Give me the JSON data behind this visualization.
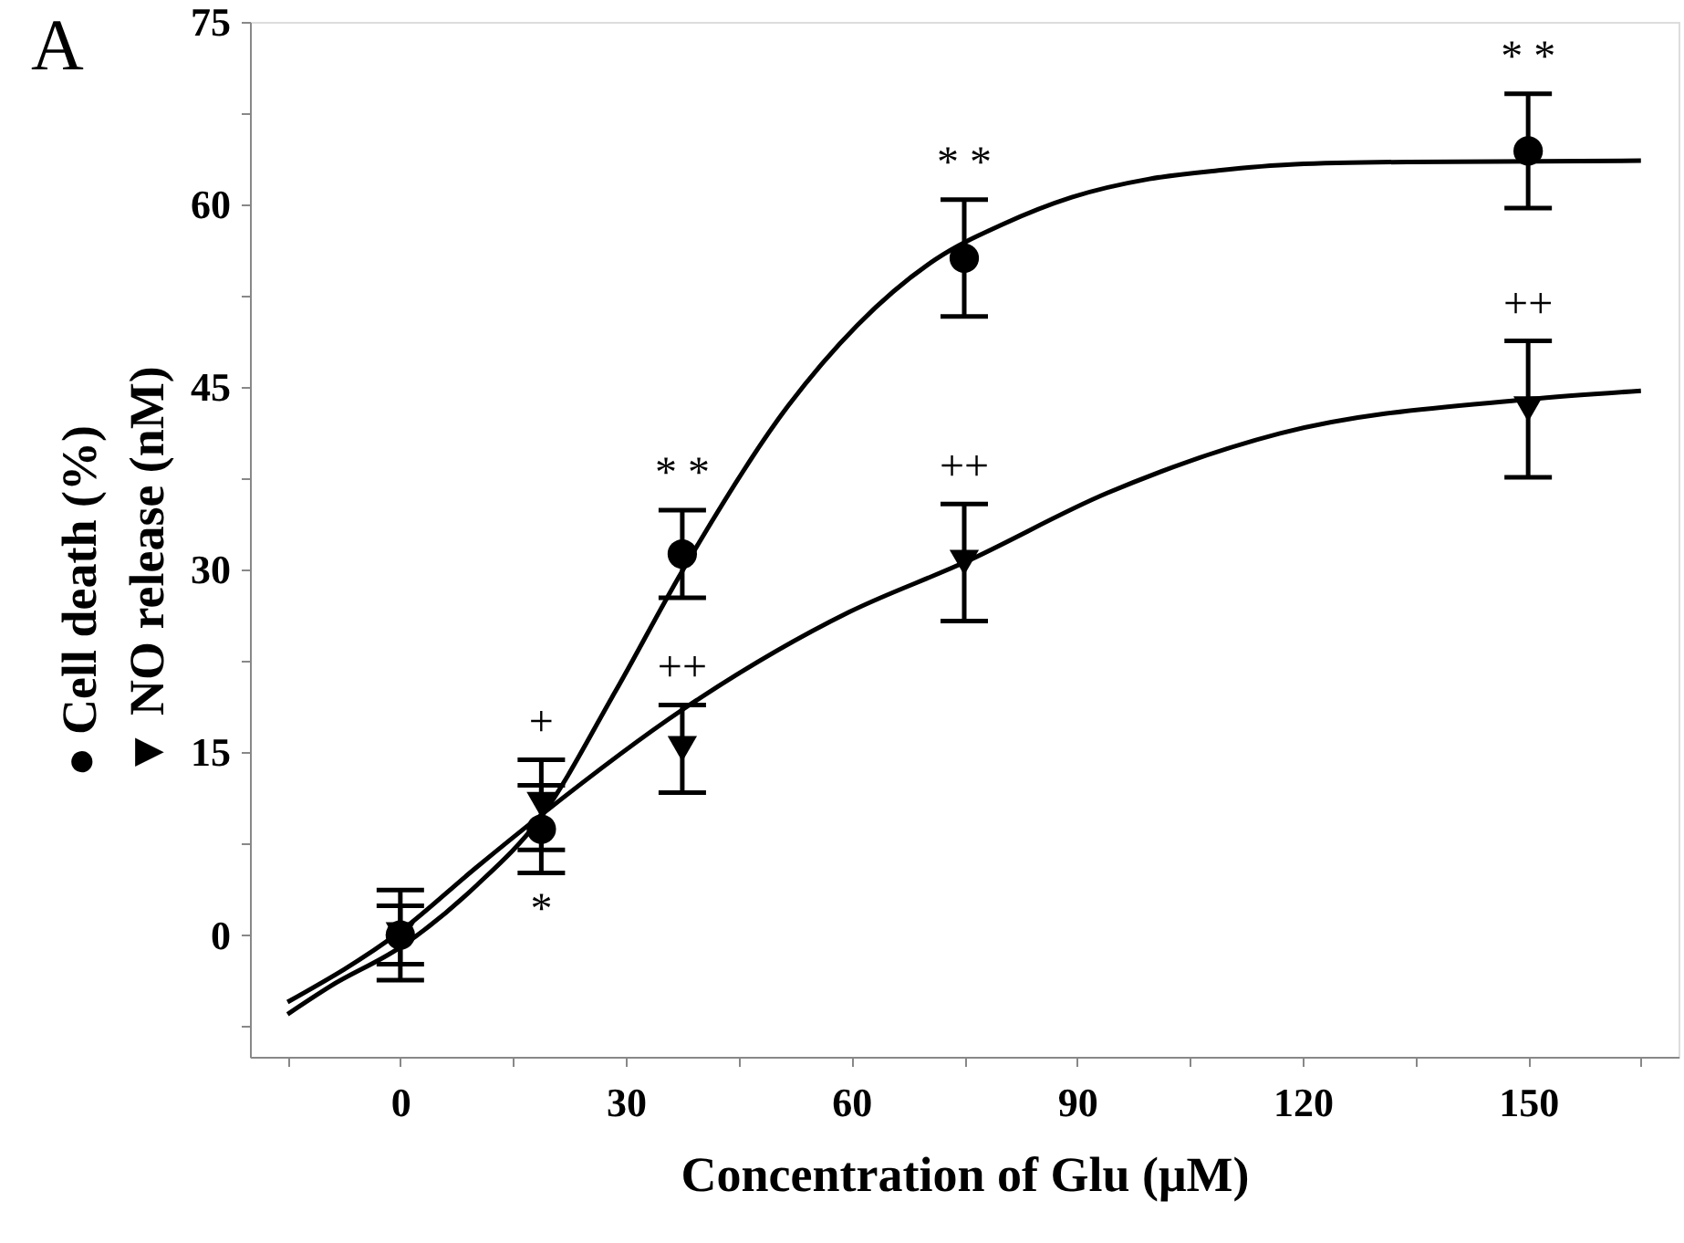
{
  "chart_data": {
    "type": "scatter",
    "xlabel": "Concentration of Glu (μM)",
    "xlim": [
      -20,
      170
    ],
    "xticks": [
      {
        "value": -15,
        "label": null
      },
      0,
      {
        "value": 15,
        "label": null
      },
      30,
      {
        "value": 45,
        "label": null
      },
      60,
      {
        "value": 75,
        "label": null
      },
      90,
      {
        "value": 105,
        "label": null
      },
      120,
      {
        "value": 135,
        "label": null
      },
      150,
      {
        "value": 165,
        "label": null
      }
    ],
    "ylim": [
      -10,
      75
    ],
    "yticks": [
      {
        "value": -7.5,
        "label": null
      },
      0,
      {
        "value": 7.5,
        "label": null
      },
      15,
      {
        "value": 22.5,
        "label": null
      },
      30,
      {
        "value": 37.5,
        "label": null
      },
      45,
      {
        "value": 52.5,
        "label": null
      },
      60,
      {
        "value": 67.5,
        "label": null
      },
      75
    ],
    "ylabel": "● Cell death (%)\n▼ NO release (nM)",
    "grid": false,
    "series": [
      {
        "color": "#000000",
        "marker": "circle",
        "x": [
          0,
          18.75,
          37.5,
          75,
          150
        ],
        "values": [
          0,
          8.7,
          31.3,
          55.6,
          64.4
        ],
        "errors": [
          3.7,
          3.6,
          3.6,
          4.8,
          4.7
        ]
      },
      {
        "color": "#000000",
        "marker": "triangle",
        "x": [
          0,
          18.75,
          37.5,
          75,
          150
        ],
        "values": [
          0,
          10.7,
          15.3,
          30.6,
          43.2
        ],
        "errors": [
          2.4,
          3.7,
          3.6,
          4.8,
          5.6
        ]
      },
      {
        "type": "line",
        "color": "#000000",
        "x": [
          -15,
          -9.3,
          0,
          10,
          18.6,
          28.5,
          37.5,
          51.5,
          60.8,
          71.2,
          80.2,
          89.3,
          99.6,
          108.8,
          119,
          134,
          165
        ],
        "values": [
          -6.5,
          -4.2,
          -1.0,
          4.0,
          9.6,
          19.9,
          29.9,
          43.4,
          50.1,
          55.5,
          58.4,
          60.6,
          62.1,
          62.8,
          63.3,
          63.5,
          63.6
        ]
      },
      {
        "type": "line",
        "color": "#000000",
        "x": [
          -15,
          0,
          10,
          18.6,
          37.5,
          59.6,
          75,
          94,
          117,
          150,
          165
        ],
        "values": [
          -5.5,
          0.3,
          5.5,
          9.8,
          18.5,
          26.5,
          30.6,
          36.3,
          41.2,
          44.0,
          44.7
        ]
      }
    ],
    "annotations": [
      "A",
      {
        "text": "* *",
        "x": 37.5,
        "y": 34.9
      },
      {
        "text": "* *",
        "x": 75,
        "y": 60.4
      },
      {
        "text": "* *",
        "x": 150,
        "y": 69.1
      },
      {
        "text": "*",
        "x": 18.75,
        "y": 5.1
      },
      {
        "text": "+",
        "x": 18.75,
        "y": 14.4
      },
      {
        "text": "++",
        "x": 37.5,
        "y": 18.9
      },
      {
        "text": "++",
        "x": 75,
        "y": 35.4
      },
      {
        "text": "++",
        "x": 150,
        "y": 48.8
      }
    ]
  }
}
